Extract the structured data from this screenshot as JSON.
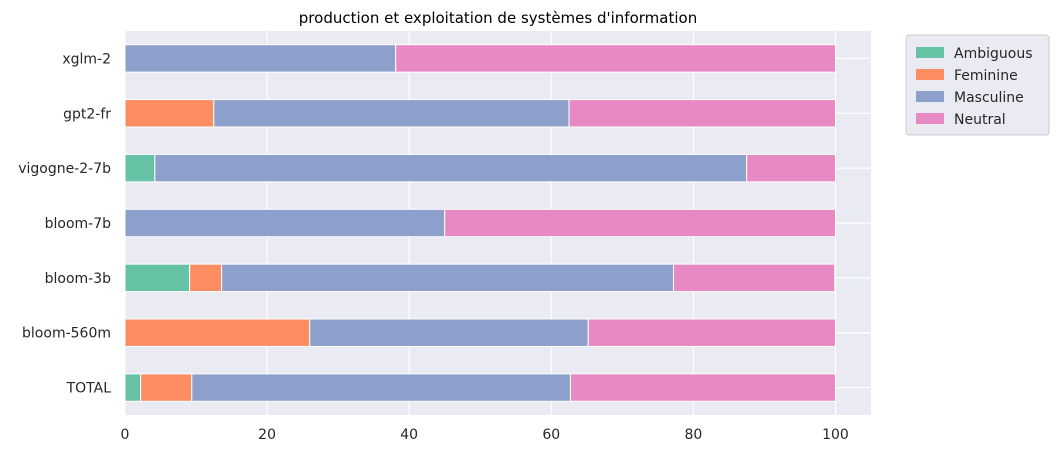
{
  "chart_data": {
    "type": "bar",
    "orientation": "horizontal",
    "stacked": true,
    "title": "production et exploitation de systèmes d'information",
    "xlabel": "",
    "ylabel": "",
    "xlim": [
      0,
      105
    ],
    "xticks": [
      "0",
      "20",
      "40",
      "60",
      "80",
      "100"
    ],
    "grid": true,
    "legend_position": "outside-top-right",
    "categories": [
      "xglm-2",
      "gpt2-fr",
      "vigogne-2-7b",
      "bloom-7b",
      "bloom-3b",
      "bloom-560m",
      "TOTAL"
    ],
    "series": [
      {
        "name": "Ambiguous",
        "color": "#66c2a5",
        "values": [
          0,
          0,
          4.2,
          0,
          9.1,
          0,
          2.2
        ]
      },
      {
        "name": "Feminine",
        "color": "#fc8d62",
        "values": [
          0,
          12.5,
          0,
          0,
          4.5,
          26.0,
          7.2
        ]
      },
      {
        "name": "Masculine",
        "color": "#8da0cb",
        "values": [
          38.1,
          50.0,
          83.3,
          45.0,
          63.6,
          39.2,
          53.3
        ]
      },
      {
        "name": "Neutral",
        "color": "#e78ac3",
        "values": [
          61.9,
          37.5,
          12.5,
          55.0,
          22.7,
          34.8,
          37.3
        ]
      }
    ]
  }
}
